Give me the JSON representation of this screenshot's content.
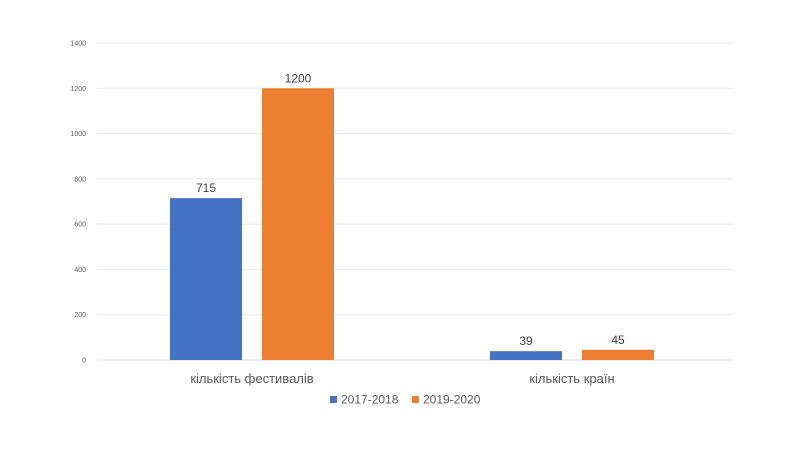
{
  "chart_data": {
    "type": "bar",
    "categories": [
      "кількість фестивалів",
      "кількість країн"
    ],
    "series": [
      {
        "name": "2017-2018",
        "values": [
          715,
          39
        ],
        "color": "#4472c4"
      },
      {
        "name": "2019-2020",
        "values": [
          1200,
          45
        ],
        "color": "#ed7d31"
      }
    ],
    "yticks": [
      "0",
      "200",
      "400",
      "600",
      "800",
      "1000",
      "1200",
      "1400"
    ],
    "ylim": [
      0,
      1400
    ],
    "grid": true,
    "legend": "bottom",
    "data_labels": true
  }
}
